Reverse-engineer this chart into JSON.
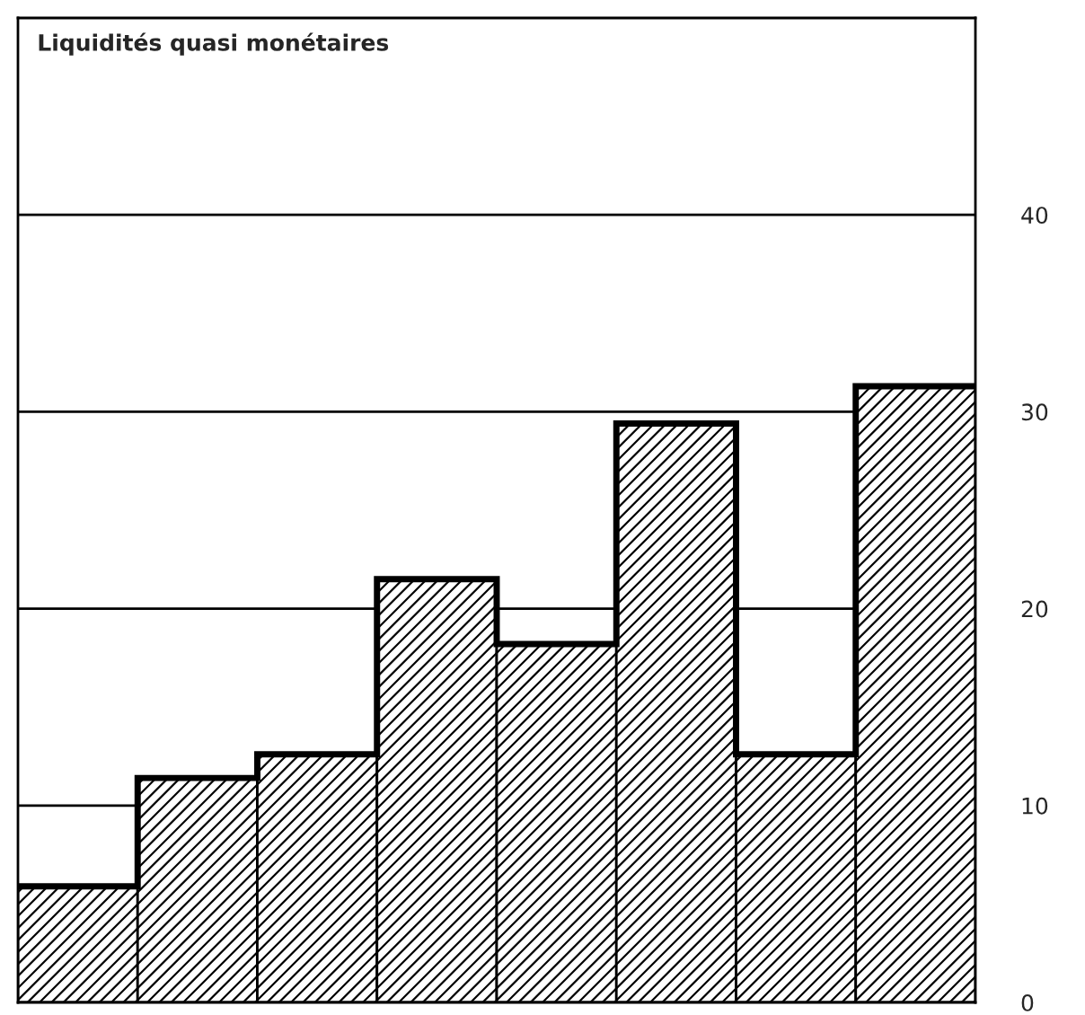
{
  "chart_data": {
    "type": "bar",
    "title": "Liquidités quasi monétaires",
    "categories": [
      null,
      null,
      null,
      null,
      null,
      null,
      null,
      null
    ],
    "values": [
      5.9,
      11.4,
      12.6,
      21.5,
      18.2,
      29.4,
      12.6,
      31.3
    ],
    "color": "#000000",
    "ylim": [
      0,
      50
    ],
    "yticks": [
      0,
      10,
      20,
      30,
      40
    ],
    "grid": "y"
  }
}
